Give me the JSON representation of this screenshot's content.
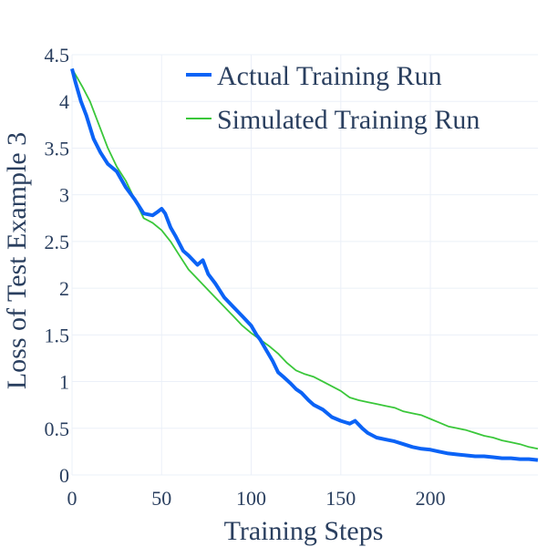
{
  "chart_data": {
    "type": "line",
    "title": "",
    "xlabel": "Training Steps",
    "ylabel": "Loss of Test Example 3",
    "xlim": [
      0,
      260
    ],
    "ylim": [
      0,
      4.5
    ],
    "x_ticks": [
      0,
      50,
      100,
      150,
      200
    ],
    "x_tick_labels": [
      "0",
      "50",
      "100",
      "150",
      "200"
    ],
    "y_ticks": [
      0,
      0.5,
      1,
      1.5,
      2,
      2.5,
      3,
      3.5,
      4,
      4.5
    ],
    "y_tick_labels": [
      "0",
      "0.5",
      "1",
      "1.5",
      "2",
      "2.5",
      "3",
      "3.5",
      "4",
      "4.5"
    ],
    "grid": true,
    "legend_position": "top-right",
    "series": [
      {
        "name": "Actual Training Run",
        "color": "#0b63f6",
        "x": [
          0,
          2,
          5,
          8,
          12,
          16,
          20,
          25,
          30,
          35,
          40,
          45,
          48,
          50,
          52,
          55,
          58,
          62,
          65,
          70,
          73,
          76,
          80,
          85,
          90,
          95,
          100,
          103,
          105,
          108,
          112,
          115,
          118,
          122,
          125,
          128,
          132,
          135,
          140,
          145,
          150,
          155,
          158,
          162,
          165,
          170,
          175,
          180,
          185,
          190,
          195,
          200,
          205,
          210,
          215,
          220,
          225,
          230,
          235,
          240,
          245,
          250,
          255,
          260
        ],
        "y": [
          4.35,
          4.2,
          4.0,
          3.85,
          3.6,
          3.45,
          3.33,
          3.25,
          3.08,
          2.95,
          2.8,
          2.78,
          2.82,
          2.85,
          2.8,
          2.65,
          2.55,
          2.4,
          2.35,
          2.25,
          2.3,
          2.15,
          2.05,
          1.9,
          1.8,
          1.7,
          1.6,
          1.5,
          1.45,
          1.35,
          1.22,
          1.1,
          1.05,
          0.98,
          0.92,
          0.88,
          0.8,
          0.75,
          0.7,
          0.62,
          0.58,
          0.55,
          0.58,
          0.5,
          0.45,
          0.4,
          0.38,
          0.36,
          0.33,
          0.3,
          0.28,
          0.27,
          0.25,
          0.23,
          0.22,
          0.21,
          0.2,
          0.2,
          0.19,
          0.18,
          0.18,
          0.17,
          0.17,
          0.16
        ]
      },
      {
        "name": "Simulated Training Run",
        "color": "#3ac73a",
        "x": [
          0,
          3,
          6,
          10,
          15,
          20,
          25,
          30,
          35,
          40,
          45,
          50,
          55,
          60,
          65,
          70,
          75,
          80,
          85,
          90,
          95,
          100,
          105,
          110,
          115,
          120,
          125,
          130,
          135,
          140,
          145,
          150,
          155,
          160,
          165,
          170,
          175,
          180,
          185,
          190,
          195,
          200,
          205,
          210,
          215,
          220,
          225,
          230,
          235,
          240,
          245,
          250,
          255,
          260
        ],
        "y": [
          4.35,
          4.25,
          4.15,
          4.0,
          3.75,
          3.5,
          3.3,
          3.15,
          2.95,
          2.75,
          2.7,
          2.62,
          2.5,
          2.35,
          2.2,
          2.1,
          2.0,
          1.9,
          1.8,
          1.7,
          1.6,
          1.52,
          1.45,
          1.38,
          1.3,
          1.2,
          1.12,
          1.08,
          1.05,
          1.0,
          0.95,
          0.9,
          0.83,
          0.8,
          0.78,
          0.76,
          0.74,
          0.72,
          0.68,
          0.66,
          0.64,
          0.6,
          0.56,
          0.52,
          0.5,
          0.48,
          0.45,
          0.42,
          0.4,
          0.37,
          0.35,
          0.33,
          0.3,
          0.28
        ]
      }
    ]
  }
}
